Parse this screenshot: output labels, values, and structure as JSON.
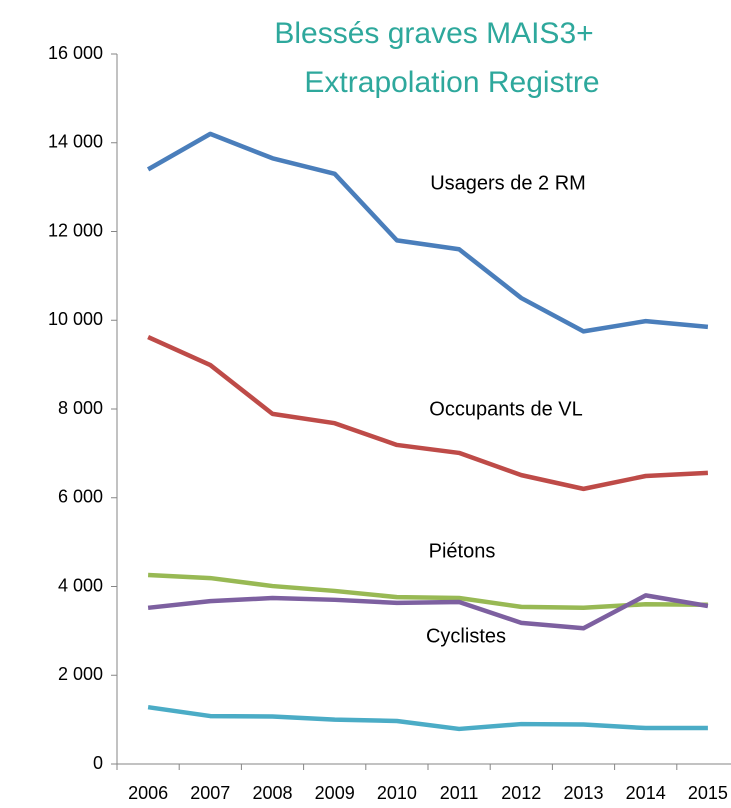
{
  "chart_data": {
    "type": "line",
    "title": [
      "Blessés graves MAIS3+",
      "Extrapolation Registre"
    ],
    "categories": [
      "2006",
      "2007",
      "2008",
      "2009",
      "2010",
      "2011",
      "2012",
      "2013",
      "2014",
      "2015"
    ],
    "ylim": [
      0,
      16000
    ],
    "yticks": [
      0,
      {
        "value": 2000,
        "label": "2 000"
      },
      {
        "value": 4000,
        "label": "4 000"
      },
      {
        "value": 6000,
        "label": "6 000"
      },
      {
        "value": 8000,
        "label": "8 000"
      },
      {
        "value": 10000,
        "label": "10 000"
      },
      {
        "value": 12000,
        "label": "12 000"
      },
      {
        "value": 14000,
        "label": "14 000"
      },
      {
        "value": 16000,
        "label": "16 000"
      }
    ],
    "grid": false,
    "series": [
      {
        "name": "Usagers de 2 RM",
        "color": "#4a7ebb",
        "values": [
          13400,
          14200,
          13650,
          13300,
          11800,
          11600,
          10500,
          9750,
          9980,
          9850
        ]
      },
      {
        "name": "Occupants de VL",
        "color": "#be4b48",
        "values": [
          9620,
          8990,
          7890,
          7680,
          7190,
          7010,
          6510,
          6200,
          6490,
          6560
        ]
      },
      {
        "name": "Piétons",
        "color": "#98b954",
        "values": [
          4260,
          4190,
          4010,
          3900,
          3760,
          3740,
          3540,
          3520,
          3600,
          3590
        ]
      },
      {
        "name": "Cyclistes",
        "color": "#7d60a0",
        "values": [
          3520,
          3670,
          3740,
          3700,
          3630,
          3650,
          3180,
          3060,
          3800,
          3560
        ]
      },
      {
        "color": "#4bacc6",
        "values": [
          1280,
          1080,
          1070,
          1000,
          970,
          790,
          900,
          890,
          810,
          810
        ]
      }
    ]
  }
}
